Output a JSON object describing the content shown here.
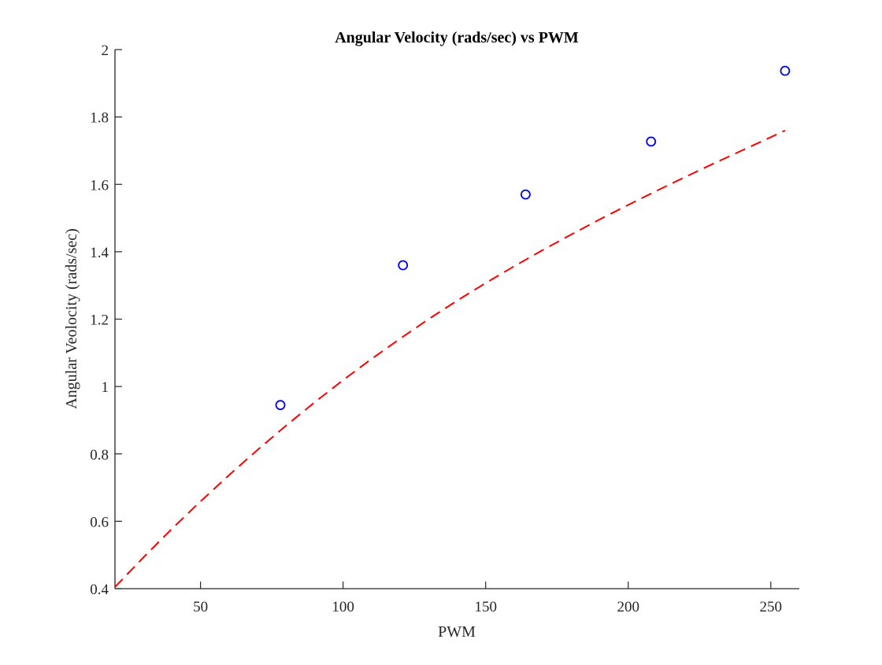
{
  "chart_data": {
    "type": "scatter",
    "title": "Angular Velocity (rads/sec) vs PWM",
    "xlabel": "PWM",
    "ylabel": "Angular Veolocity (rads/sec)",
    "xlim": [
      20,
      260
    ],
    "ylim": [
      0.4,
      2.0
    ],
    "xticks": [
      50,
      100,
      150,
      200,
      250
    ],
    "xtick_labels": [
      "50",
      "100",
      "150",
      "200",
      "250"
    ],
    "yticks": [
      0.4,
      0.6,
      0.8,
      1.0,
      1.2,
      1.4,
      1.6,
      1.8,
      2.0
    ],
    "ytick_labels": [
      "0.4",
      "0.6",
      "0.8",
      "1",
      "1.2",
      "1.4",
      "1.6",
      "1.8",
      "2"
    ],
    "grid": false,
    "series": [
      {
        "kind": "markers",
        "marker": "circle",
        "color": "#0000ff",
        "x": [
          78,
          121,
          164,
          208,
          255
        ],
        "y": [
          0.945,
          1.36,
          1.57,
          1.727,
          1.937
        ]
      },
      {
        "kind": "fit-line",
        "line_style": "dashed",
        "color": "#ff0000",
        "x": [
          20,
          30,
          40,
          50,
          60,
          70,
          80,
          90,
          100,
          110,
          120,
          130,
          140,
          150,
          160,
          170,
          180,
          190,
          200,
          210,
          220,
          230,
          240,
          250,
          255
        ],
        "y": [
          0.405,
          0.493,
          0.578,
          0.659,
          0.737,
          0.812,
          0.884,
          0.953,
          1.019,
          1.082,
          1.142,
          1.2,
          1.255,
          1.307,
          1.357,
          1.405,
          1.451,
          1.496,
          1.539,
          1.581,
          1.622,
          1.662,
          1.701,
          1.74,
          1.76
        ]
      }
    ]
  }
}
